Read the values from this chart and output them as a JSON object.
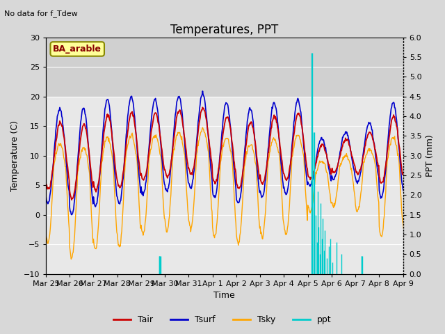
{
  "title": "Temperatures, PPT",
  "subtitle": "No data for f_Tdew",
  "box_label": "BA_arable",
  "xlabel": "Time",
  "ylabel_left": "Temperature (C)",
  "ylabel_right": "PPT (mm)",
  "ylim_left": [
    -10,
    30
  ],
  "ylim_right": [
    0.0,
    6.0
  ],
  "yticks_left": [
    -10,
    -5,
    0,
    5,
    10,
    15,
    20,
    25,
    30
  ],
  "yticks_right": [
    0.0,
    0.5,
    1.0,
    1.5,
    2.0,
    2.5,
    3.0,
    3.5,
    4.0,
    4.5,
    5.0,
    5.5,
    6.0
  ],
  "xtick_labels": [
    "Mar 25",
    "Mar 26",
    "Mar 27",
    "Mar 28",
    "Mar 29",
    "Mar 30",
    "Mar 31",
    "Apr 1",
    "Apr 2",
    "Apr 3",
    "Apr 4",
    "Apr 5",
    "Apr 6",
    "Apr 7",
    "Apr 8",
    "Apr 9"
  ],
  "color_tair": "#cc0000",
  "color_tsurf": "#0000cc",
  "color_tsky": "#ffa500",
  "color_ppt": "#00cccc",
  "background_color": "#d8d8d8",
  "plot_bg_upper": "#d0d0d0",
  "plot_bg_lower": "#e8e8e8",
  "grid_color": "#ffffff",
  "box_fill": "#ffff99",
  "box_edge": "#888800",
  "title_fontsize": 12,
  "label_fontsize": 9,
  "tick_fontsize": 8
}
